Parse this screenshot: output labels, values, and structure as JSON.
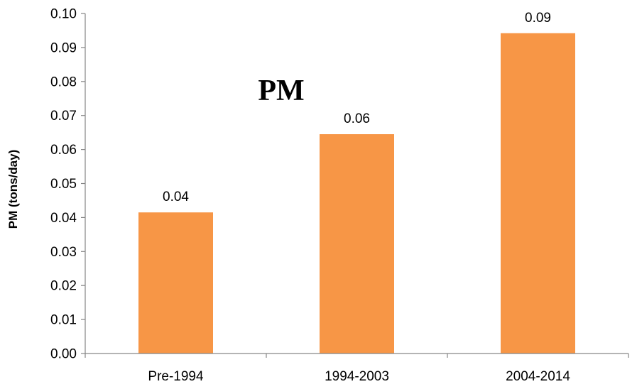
{
  "chart_data": {
    "type": "bar",
    "title": "PM",
    "xlabel": "",
    "ylabel": "PM (tons/day)",
    "categories": [
      "Pre-1994",
      "1994-2003",
      "2004-2014"
    ],
    "values": [
      0.0415,
      0.0645,
      0.0942
    ],
    "data_labels": [
      "0.04",
      "0.06",
      "0.09"
    ],
    "ylim": [
      0,
      0.1
    ],
    "yticks": [
      "0.00",
      "0.01",
      "0.02",
      "0.03",
      "0.04",
      "0.05",
      "0.06",
      "0.07",
      "0.08",
      "0.09",
      "0.10"
    ],
    "bar_color": "#f79646",
    "grid": false,
    "legend": "none"
  }
}
